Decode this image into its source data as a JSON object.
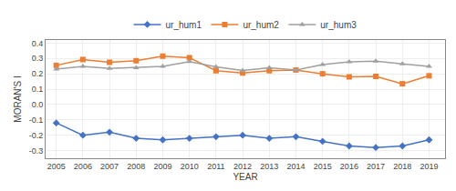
{
  "chart_data": {
    "type": "line",
    "x": [
      2005,
      2006,
      2007,
      2008,
      2009,
      2010,
      2011,
      2012,
      2013,
      2014,
      2015,
      2016,
      2017,
      2018,
      2019
    ],
    "series": [
      {
        "name": "ur_hum1",
        "color": "#4472C4",
        "marker": "diamond",
        "line_style": "solid",
        "values": [
          -0.12,
          -0.2,
          -0.18,
          -0.22,
          -0.23,
          -0.22,
          -0.21,
          -0.2,
          -0.22,
          -0.21,
          -0.24,
          -0.27,
          -0.28,
          -0.27,
          -0.23
        ]
      },
      {
        "name": "ur_hum2",
        "color": "#ED7D31",
        "marker": "square",
        "line_style": "solid",
        "values": [
          0.255,
          0.293,
          0.275,
          0.285,
          0.315,
          0.305,
          0.22,
          0.205,
          0.22,
          0.225,
          0.2,
          0.18,
          0.183,
          0.135,
          0.187
        ]
      },
      {
        "name": "ur_hum3",
        "color": "#A0A0A0",
        "marker": "triangle-up",
        "line_style": "solid",
        "values": [
          0.23,
          0.248,
          0.235,
          0.24,
          0.248,
          0.28,
          0.245,
          0.222,
          0.24,
          0.225,
          0.26,
          0.278,
          0.283,
          0.265,
          0.248
        ]
      }
    ],
    "x_label": "YEAR",
    "y_label": "MORAN'S I",
    "xlim": [
      2004.6,
      2019.6
    ],
    "xticks": [
      2005,
      2006,
      2007,
      2008,
      2009,
      2010,
      2011,
      2012,
      2013,
      2014,
      2015,
      2016,
      2017,
      2018,
      2019
    ],
    "ylim": [
      -0.35,
      0.42
    ],
    "yticks": [
      -0.3,
      -0.2,
      -0.1,
      {
        "value": 0.0,
        "label": "0.0"
      },
      0.1,
      0.2,
      0.3,
      0.4
    ],
    "grid": true,
    "legend": "top"
  }
}
